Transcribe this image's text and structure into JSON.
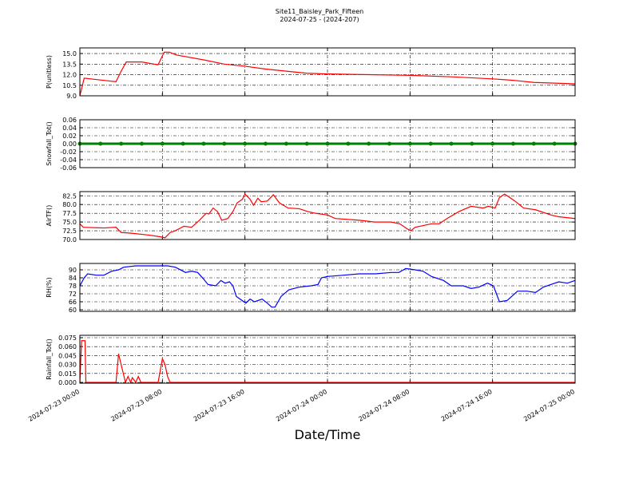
{
  "figure": {
    "title": "Site11_Baisley_Park_Fifteen",
    "subtitle": "2024-07-25 - (2024-207)",
    "xlabel": "Date/Time",
    "xlim": [
      "2024-07-23 00:00",
      "2024-07-25 00:00"
    ],
    "xticks": [
      "2024-07-23 00:00",
      "2024-07-23 08:00",
      "2024-07-23 16:00",
      "2024-07-24 00:00",
      "2024-07-24 08:00",
      "2024-07-24 16:00",
      "2024-07-25 00:00"
    ],
    "grid": true
  },
  "chart_data": [
    {
      "type": "line",
      "ylabel": "P(unitless)",
      "ylim": [
        9.0,
        15.8
      ],
      "yticks": [
        {
          "value": 9,
          "label": "9.0"
        },
        10.5,
        {
          "value": 12,
          "label": "12.0"
        },
        13.5,
        {
          "value": 15,
          "label": "15.0"
        }
      ],
      "x": [
        "2024-07-23 00:00",
        "2024-07-23 00:25",
        "2024-07-23 03:30",
        "2024-07-23 04:00",
        "2024-07-23 04:30",
        "2024-07-23 06:00",
        "2024-07-23 07:35",
        "2024-07-23 08:10",
        "2024-07-23 08:40",
        "2024-07-23 09:20",
        "2024-07-23 12:00",
        "2024-07-23 14:00",
        "2024-07-23 16:00",
        "2024-07-23 18:00",
        "2024-07-23 20:00",
        "2024-07-23 22:00",
        "2024-07-24 00:00",
        "2024-07-24 04:00",
        "2024-07-24 08:00",
        "2024-07-24 12:00",
        "2024-07-24 16:00",
        "2024-07-24 18:00",
        "2024-07-24 20:00",
        "2024-07-24 22:00",
        "2024-07-25 00:00"
      ],
      "series": [
        {
          "color": "#ff0000",
          "values": [
            9.0,
            11.5,
            11.0,
            12.5,
            13.8,
            13.8,
            13.4,
            15.2,
            15.2,
            14.8,
            14.1,
            13.5,
            13.2,
            12.8,
            12.5,
            12.2,
            12.1,
            12.0,
            11.9,
            11.7,
            11.4,
            11.2,
            10.9,
            10.8,
            10.7
          ]
        }
      ]
    },
    {
      "type": "line",
      "ylabel": "Snowfall_Tot()",
      "ylim": [
        -0.06,
        0.06
      ],
      "yticks": [
        -0.06,
        -0.04,
        -0.02,
        {
          "value": 0,
          "label": "0.00"
        },
        0.02,
        0.04,
        0.06
      ],
      "x": [
        "2024-07-23 00:00",
        "2024-07-23 02:00",
        "2024-07-23 04:00",
        "2024-07-23 06:00",
        "2024-07-23 08:00",
        "2024-07-23 10:00",
        "2024-07-23 12:00",
        "2024-07-23 14:00",
        "2024-07-23 16:00",
        "2024-07-23 18:00",
        "2024-07-23 20:00",
        "2024-07-23 22:00",
        "2024-07-24 00:00",
        "2024-07-24 02:00",
        "2024-07-24 04:00",
        "2024-07-24 06:00",
        "2024-07-24 08:00",
        "2024-07-24 10:00",
        "2024-07-24 12:00",
        "2024-07-24 14:00",
        "2024-07-24 16:00",
        "2024-07-24 18:00",
        "2024-07-24 20:00",
        "2024-07-24 22:00",
        "2024-07-25 00:00"
      ],
      "series": [
        {
          "color": "#008000",
          "marker": "o",
          "values": [
            0,
            0,
            0,
            0,
            0,
            0,
            0,
            0,
            0,
            0,
            0,
            0,
            0,
            0,
            0,
            0,
            0,
            0,
            0,
            0,
            0,
            0,
            0,
            0,
            0
          ]
        }
      ]
    },
    {
      "type": "line",
      "ylabel": "AirTF()",
      "ylim": [
        70.0,
        83.7
      ],
      "yticks": [
        {
          "value": 70,
          "label": "70.0"
        },
        72.5,
        {
          "value": 75,
          "label": "75.0"
        },
        77.5,
        {
          "value": 80,
          "label": "80.0"
        },
        82.5
      ],
      "x": [
        "2024-07-23 00:00",
        "2024-07-23 00:20",
        "2024-07-23 02:20",
        "2024-07-23 03:30",
        "2024-07-23 04:00",
        "2024-07-23 05:00",
        "2024-07-23 06:35",
        "2024-07-23 07:45",
        "2024-07-23 08:15",
        "2024-07-23 08:45",
        "2024-07-23 09:15",
        "2024-07-23 10:05",
        "2024-07-23 10:50",
        "2024-07-23 11:35",
        "2024-07-23 12:15",
        "2024-07-23 12:30",
        "2024-07-23 12:55",
        "2024-07-23 13:20",
        "2024-07-23 13:45",
        "2024-07-23 14:20",
        "2024-07-23 14:50",
        "2024-07-23 15:15",
        "2024-07-23 15:45",
        "2024-07-23 16:00",
        "2024-07-23 16:30",
        "2024-07-23 16:50",
        "2024-07-23 17:15",
        "2024-07-23 17:35",
        "2024-07-23 18:10",
        "2024-07-23 18:45",
        "2024-07-23 19:20",
        "2024-07-23 20:10",
        "2024-07-23 21:15",
        "2024-07-23 22:05",
        "2024-07-23 22:50",
        "2024-07-24 00:00",
        "2024-07-24 00:45",
        "2024-07-24 03:05",
        "2024-07-24 04:35",
        "2024-07-24 06:10",
        "2024-07-24 07:00",
        "2024-07-24 07:45",
        "2024-07-24 08:05",
        "2024-07-24 08:30",
        "2024-07-24 10:05",
        "2024-07-24 10:50",
        "2024-07-24 11:35",
        "2024-07-24 12:45",
        "2024-07-24 13:55",
        "2024-07-24 15:05",
        "2024-07-24 15:35",
        "2024-07-24 16:15",
        "2024-07-24 16:40",
        "2024-07-24 17:10",
        "2024-07-24 18:10",
        "2024-07-24 19:00",
        "2024-07-24 20:10",
        "2024-07-24 21:40",
        "2024-07-24 22:25",
        "2024-07-25 00:00"
      ],
      "series": [
        {
          "color": "#ff0000",
          "values": [
            74.5,
            73.5,
            73.3,
            73.5,
            72.0,
            71.8,
            71.3,
            70.8,
            70.5,
            72.0,
            72.5,
            73.8,
            73.5,
            75.5,
            77.5,
            77.3,
            79.0,
            78.0,
            75.5,
            76.0,
            78.0,
            80.5,
            81.5,
            83.0,
            81.5,
            79.8,
            81.8,
            80.8,
            81.0,
            82.8,
            80.5,
            79.0,
            78.8,
            78.0,
            77.5,
            77.0,
            76.0,
            75.5,
            75.0,
            75.0,
            74.5,
            73.0,
            72.5,
            73.5,
            74.5,
            74.5,
            76.0,
            78.0,
            79.5,
            79.0,
            79.5,
            79.0,
            82.0,
            83.0,
            81.0,
            79.0,
            78.5,
            77.0,
            76.5,
            76.0
          ]
        }
      ]
    },
    {
      "type": "line",
      "ylabel": "RH(%)",
      "ylim": [
        58.8,
        94.8
      ],
      "yticks": [
        60,
        66,
        72,
        78,
        84,
        90
      ],
      "x": [
        "2024-07-23 00:00",
        "2024-07-23 00:25",
        "2024-07-23 00:45",
        "2024-07-23 01:35",
        "2024-07-23 02:20",
        "2024-07-23 03:05",
        "2024-07-23 03:45",
        "2024-07-23 04:15",
        "2024-07-23 05:25",
        "2024-07-23 07:00",
        "2024-07-23 08:30",
        "2024-07-23 09:15",
        "2024-07-23 10:15",
        "2024-07-23 10:50",
        "2024-07-23 11:25",
        "2024-07-23 12:00",
        "2024-07-23 12:25",
        "2024-07-23 13:10",
        "2024-07-23 13:40",
        "2024-07-23 14:05",
        "2024-07-23 14:30",
        "2024-07-23 14:50",
        "2024-07-23 15:10",
        "2024-07-23 16:05",
        "2024-07-23 16:30",
        "2024-07-23 16:55",
        "2024-07-23 17:40",
        "2024-07-23 18:10",
        "2024-07-23 18:35",
        "2024-07-23 18:55",
        "2024-07-23 19:30",
        "2024-07-23 20:15",
        "2024-07-23 21:15",
        "2024-07-23 22:25",
        "2024-07-23 23:05",
        "2024-07-23 23:25",
        "2024-07-24 00:00",
        "2024-07-24 01:35",
        "2024-07-24 03:05",
        "2024-07-24 04:40",
        "2024-07-24 06:10",
        "2024-07-24 06:55",
        "2024-07-24 07:35",
        "2024-07-24 08:30",
        "2024-07-24 09:15",
        "2024-07-24 10:05",
        "2024-07-24 11:15",
        "2024-07-24 12:00",
        "2024-07-24 13:10",
        "2024-07-24 13:55",
        "2024-07-24 14:40",
        "2024-07-24 15:30",
        "2024-07-24 16:05",
        "2024-07-24 16:40",
        "2024-07-24 17:25",
        "2024-07-24 18:00",
        "2024-07-24 18:25",
        "2024-07-24 19:20",
        "2024-07-24 20:10",
        "2024-07-24 20:55",
        "2024-07-24 21:40",
        "2024-07-24 22:25",
        "2024-07-24 23:15",
        "2024-07-25 00:00"
      ],
      "series": [
        {
          "color": "#0000ff",
          "values": [
            78,
            84,
            87,
            86,
            86,
            89,
            90,
            92,
            93,
            93,
            93,
            92,
            88,
            89,
            88,
            83,
            79,
            78,
            82,
            80,
            81,
            78,
            70,
            65,
            68,
            66,
            68,
            65,
            62,
            62,
            70,
            75,
            77,
            78,
            79,
            84,
            85,
            86,
            87,
            87,
            88,
            88,
            91,
            90,
            89,
            85,
            82,
            78,
            78,
            76,
            77,
            80,
            78,
            66,
            67,
            71,
            74,
            74,
            73,
            77,
            79,
            81,
            80,
            82
          ]
        }
      ]
    },
    {
      "type": "line",
      "ylabel": "Rainfall_Tot()",
      "ylim": [
        -0.0013,
        0.079
      ],
      "yticks": [
        {
          "value": 0,
          "label": "0.000"
        },
        0.015,
        {
          "value": 0.03,
          "label": "0.030"
        },
        0.045,
        {
          "value": 0.06,
          "label": "0.060"
        },
        0.075
      ],
      "x": [
        "2024-07-23 00:00",
        "2024-07-23 00:10",
        "2024-07-23 00:30",
        "2024-07-23 00:35",
        "2024-07-23 03:30",
        "2024-07-23 03:45",
        "2024-07-23 04:00",
        "2024-07-23 04:25",
        "2024-07-23 04:40",
        "2024-07-23 04:55",
        "2024-07-23 05:05",
        "2024-07-23 05:25",
        "2024-07-23 05:40",
        "2024-07-23 05:55",
        "2024-07-23 07:35",
        "2024-07-23 08:00",
        "2024-07-23 08:15",
        "2024-07-23 08:30",
        "2024-07-23 08:45",
        "2024-07-25 00:00"
      ],
      "series": [
        {
          "color": "#ff0000",
          "values": [
            0,
            0.07,
            0.07,
            0,
            0,
            0.048,
            0.03,
            0,
            0.01,
            0,
            0.008,
            0,
            0.01,
            0,
            0,
            0.04,
            0.03,
            0.01,
            0,
            0
          ]
        }
      ]
    }
  ]
}
